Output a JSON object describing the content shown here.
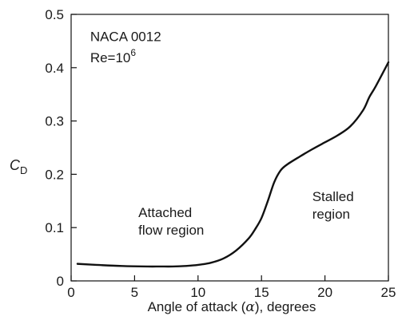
{
  "chart_data": {
    "type": "line",
    "title": "",
    "xlabel": {
      "before": "Angle of attack (",
      "symbol": "α",
      "after": "), degrees"
    },
    "ylabel": {
      "main": "C",
      "subscript": "D"
    },
    "xlim": [
      0,
      25
    ],
    "ylim": [
      0,
      0.5
    ],
    "xticks": [
      0,
      5,
      10,
      15,
      20,
      25
    ],
    "yticks": [
      0,
      0.1,
      0.2,
      0.3,
      0.4,
      0.5
    ],
    "xtick_labels": [
      "0",
      "5",
      "10",
      "15",
      "20",
      "25"
    ],
    "ytick_labels": [
      "0",
      "0.1",
      "0.2",
      "0.3",
      "0.4",
      "0.5"
    ],
    "grid": false,
    "series": [
      {
        "x": [
          0.5,
          2,
          4,
          6,
          7,
          8,
          9,
          10,
          11,
          12,
          13,
          14,
          14.5,
          15,
          15.5,
          16,
          16.5,
          17,
          18,
          19,
          20,
          21,
          22,
          23,
          23.5,
          24,
          25
        ],
        "y": [
          0.032,
          0.03,
          0.028,
          0.027,
          0.027,
          0.027,
          0.028,
          0.03,
          0.034,
          0.042,
          0.057,
          0.08,
          0.097,
          0.118,
          0.15,
          0.185,
          0.207,
          0.218,
          0.233,
          0.247,
          0.26,
          0.273,
          0.29,
          0.32,
          0.345,
          0.365,
          0.41
        ]
      }
    ],
    "annotations": [
      {
        "lines": [
          "NACA 0012"
        ],
        "x": 1.5,
        "y": 0.45
      },
      {
        "lines": [
          "Re=10"
        ],
        "superscript": "6",
        "x": 1.5,
        "y": 0.41
      },
      {
        "lines": [
          "Attached",
          "flow region"
        ],
        "x": 5.3,
        "y": 0.12
      },
      {
        "lines": [
          "Stalled",
          "region"
        ],
        "x": 19.0,
        "y": 0.15
      }
    ]
  }
}
